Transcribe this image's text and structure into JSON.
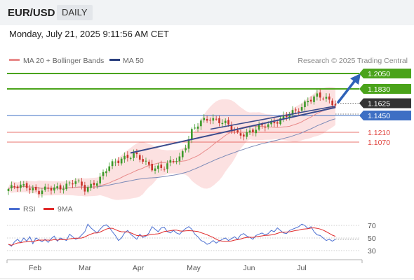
{
  "header": {
    "pair": "EUR/USD",
    "timeframe": "DAILY"
  },
  "datetime": "Monday, July 21, 2025 9:11:56 AM CET",
  "legend": {
    "ma20": "MA 20 + Bollinger Bands",
    "ma50": "MA 50",
    "source": "Research © 2025 Trading Central"
  },
  "colors": {
    "green": "#4aa31a",
    "red": "#e0443e",
    "blue": "#3d6fc4",
    "navy": "#2a3f7e",
    "current": "#333333",
    "candle_up": "#3d9a2a",
    "candle_down": "#c8322a",
    "ma20": "#e88a8a",
    "ma50": "#7d8bb8",
    "bollinger": "#fbdada",
    "rsi": "#4b6fd1",
    "rsi_ma": "#e02a2a"
  },
  "chart_data": {
    "type": "candlestick",
    "ylim": [
      1.03,
      1.21
    ],
    "x_ticks": [
      "Feb",
      "Mar",
      "Apr",
      "May",
      "Jun",
      "Jul"
    ],
    "levels": [
      {
        "label": "1.2050",
        "value": 1.205,
        "style": "resistance"
      },
      {
        "label": "1.1830",
        "value": 1.183,
        "style": "resistance"
      },
      {
        "label": "1.1625",
        "value": 1.1625,
        "style": "current"
      },
      {
        "label": "1.1450",
        "value": 1.145,
        "style": "support"
      },
      {
        "label": "1.1210",
        "value": 1.121,
        "style": "pivot"
      },
      {
        "label": "1.1070",
        "value": 1.107,
        "style": "pivot"
      }
    ],
    "series": [
      {
        "name": "MA 20 + Bollinger Bands",
        "kind": "ma20"
      },
      {
        "name": "MA 50",
        "kind": "ma50"
      }
    ],
    "rsi": {
      "name": "RSI",
      "ma_name": "9MA",
      "ylim": [
        20,
        80
      ],
      "ticks": [
        70,
        50,
        30
      ],
      "values": [
        40,
        37,
        44,
        48,
        43,
        50,
        45,
        52,
        41,
        50,
        47,
        44,
        48,
        43,
        49,
        53,
        45,
        50,
        48,
        46,
        56,
        52,
        48,
        50,
        55,
        60,
        72,
        66,
        62,
        58,
        64,
        69,
        71,
        67,
        60,
        54,
        46,
        50,
        58,
        62,
        56,
        52,
        48,
        56,
        51,
        53,
        58,
        68,
        64,
        60,
        66,
        67,
        60,
        58,
        62,
        58,
        56,
        61,
        65,
        68,
        64,
        56,
        52,
        46,
        44,
        40,
        42,
        46,
        42,
        45,
        48,
        50,
        46,
        49,
        52,
        48,
        55,
        57,
        53,
        51,
        48,
        54,
        56,
        58,
        55,
        57,
        62,
        60,
        66,
        62,
        58,
        57,
        62,
        64,
        66,
        68,
        72,
        70,
        65,
        68,
        60,
        55,
        54,
        50,
        46,
        48,
        45,
        48
      ]
    }
  }
}
